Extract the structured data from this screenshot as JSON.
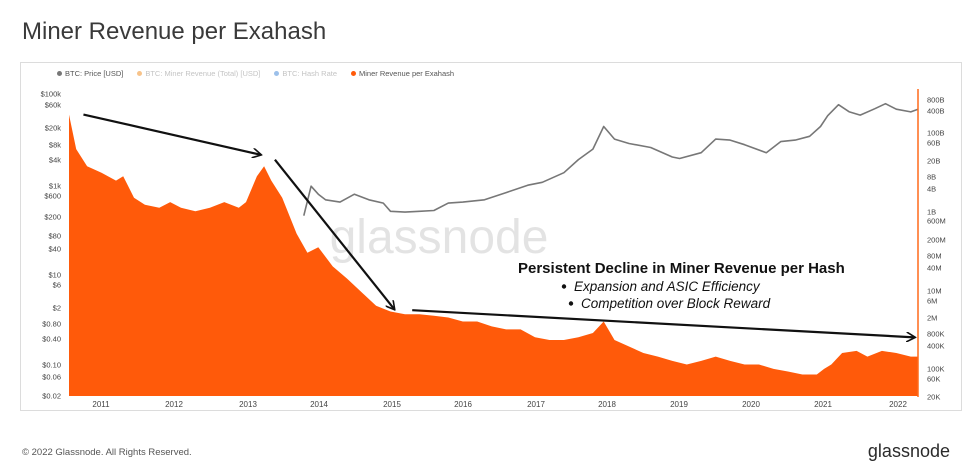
{
  "header": {
    "title": "Miner Revenue per Exahash"
  },
  "footer": {
    "copyright": "© 2022 Glassnode. All Rights Reserved.",
    "brand": "glassnode"
  },
  "watermark": "glassnode",
  "legend": [
    {
      "label": "BTC: Price [USD]",
      "color": "#777777",
      "dimmed": false
    },
    {
      "label": "BTC: Miner Revenue (Total) [USD]",
      "color": "#f7931a",
      "dimmed": true
    },
    {
      "label": "BTC: Hash Rate",
      "color": "#2b7bd6",
      "dimmed": true
    },
    {
      "label": "Miner Revenue per Exahash",
      "color": "#ff5a0a",
      "dimmed": false
    }
  ],
  "annotation": {
    "heading": "Persistent Decline in Miner Revenue per Hash",
    "bullets": [
      "Expansion and ASIC Efficiency",
      "Competition over Block Reward"
    ]
  },
  "chart_data": {
    "type": "area",
    "title": "Miner Revenue per Exahash",
    "x_ticks": [
      "2011",
      "2012",
      "2013",
      "2014",
      "2015",
      "2016",
      "2017",
      "2018",
      "2019",
      "2020",
      "2021",
      "2022"
    ],
    "y_left_ticks": [
      "$100k",
      "$60k",
      "$20k",
      "$8k",
      "$4k",
      "$1k",
      "$600",
      "$200",
      "$80",
      "$40",
      "$10",
      "$6",
      "$2",
      "$0.80",
      "$0.40",
      "$0.10",
      "$0.06",
      "$0.02"
    ],
    "y_right_ticks": [
      "800B",
      "400B",
      "100B",
      "60B",
      "20B",
      "8B",
      "4B",
      "1B",
      "600M",
      "200M",
      "80M",
      "40M",
      "10M",
      "6M",
      "2M",
      "800K",
      "400K",
      "100K",
      "60K",
      "20K"
    ],
    "y_left_scale": "log",
    "y_right_scale": "log",
    "series": [
      {
        "name": "Miner Revenue per Exahash",
        "color": "#ff5a0a",
        "x": [
          2010.55,
          2010.65,
          2010.8,
          2011.0,
          2011.2,
          2011.3,
          2011.45,
          2011.6,
          2011.8,
          2011.95,
          2012.1,
          2012.3,
          2012.5,
          2012.7,
          2012.9,
          2013.0,
          2013.15,
          2013.25,
          2013.35,
          2013.5,
          2013.7,
          2013.85,
          2014.0,
          2014.2,
          2014.4,
          2014.6,
          2014.8,
          2015.0,
          2015.2,
          2015.4,
          2015.6,
          2015.8,
          2016.0,
          2016.2,
          2016.4,
          2016.6,
          2016.8,
          2017.0,
          2017.2,
          2017.4,
          2017.6,
          2017.8,
          2017.95,
          2018.1,
          2018.3,
          2018.5,
          2018.7,
          2018.9,
          2019.1,
          2019.3,
          2019.5,
          2019.7,
          2019.9,
          2020.1,
          2020.3,
          2020.5,
          2020.7,
          2020.9,
          2021.0,
          2021.1,
          2021.25,
          2021.45,
          2021.6,
          2021.8,
          2022.0,
          2022.2,
          2022.3
        ],
        "values": [
          35000,
          6000,
          2500,
          1800,
          1200,
          1500,
          500,
          350,
          300,
          400,
          300,
          250,
          300,
          400,
          300,
          400,
          1500,
          2500,
          1200,
          500,
          80,
          30,
          40,
          15,
          8,
          4,
          2,
          1.5,
          1.3,
          1.3,
          1.2,
          1.1,
          0.9,
          0.9,
          0.7,
          0.6,
          0.6,
          0.4,
          0.35,
          0.35,
          0.4,
          0.5,
          0.9,
          0.35,
          0.25,
          0.18,
          0.15,
          0.12,
          0.1,
          0.12,
          0.15,
          0.12,
          0.1,
          0.1,
          0.08,
          0.07,
          0.06,
          0.06,
          0.08,
          0.1,
          0.18,
          0.2,
          0.15,
          0.2,
          0.18,
          0.15,
          0.15
        ]
      },
      {
        "name": "BTC: Price [USD]",
        "color": "#777777",
        "x": [
          2013.8,
          2013.9,
          2014.0,
          2014.1,
          2014.3,
          2014.5,
          2014.7,
          2014.9,
          2015.0,
          2015.2,
          2015.4,
          2015.6,
          2015.8,
          2016.0,
          2016.3,
          2016.6,
          2016.9,
          2017.1,
          2017.4,
          2017.6,
          2017.8,
          2017.95,
          2018.1,
          2018.3,
          2018.6,
          2018.9,
          2019.0,
          2019.3,
          2019.5,
          2019.7,
          2019.9,
          2020.2,
          2020.4,
          2020.6,
          2020.8,
          2020.95,
          2021.05,
          2021.2,
          2021.35,
          2021.5,
          2021.7,
          2021.85,
          2022.0,
          2022.2,
          2022.3
        ],
        "values": [
          200,
          900,
          600,
          450,
          400,
          600,
          450,
          380,
          250,
          240,
          250,
          260,
          380,
          400,
          450,
          650,
          950,
          1100,
          1800,
          3500,
          6000,
          19000,
          10000,
          8000,
          6500,
          4000,
          3700,
          5000,
          10000,
          9500,
          7500,
          5000,
          8800,
          9500,
          11500,
          19000,
          33000,
          58000,
          40000,
          34000,
          47000,
          61000,
          46000,
          40000,
          46000
        ]
      }
    ],
    "trend_arrows": [
      {
        "from": [
          2010.75,
          35000
        ],
        "to": [
          2013.2,
          4500
        ]
      },
      {
        "from": [
          2013.4,
          3500
        ],
        "to": [
          2015.05,
          1.7
        ]
      },
      {
        "from": [
          2015.3,
          1.6
        ],
        "to": [
          2022.25,
          0.4
        ]
      }
    ]
  }
}
